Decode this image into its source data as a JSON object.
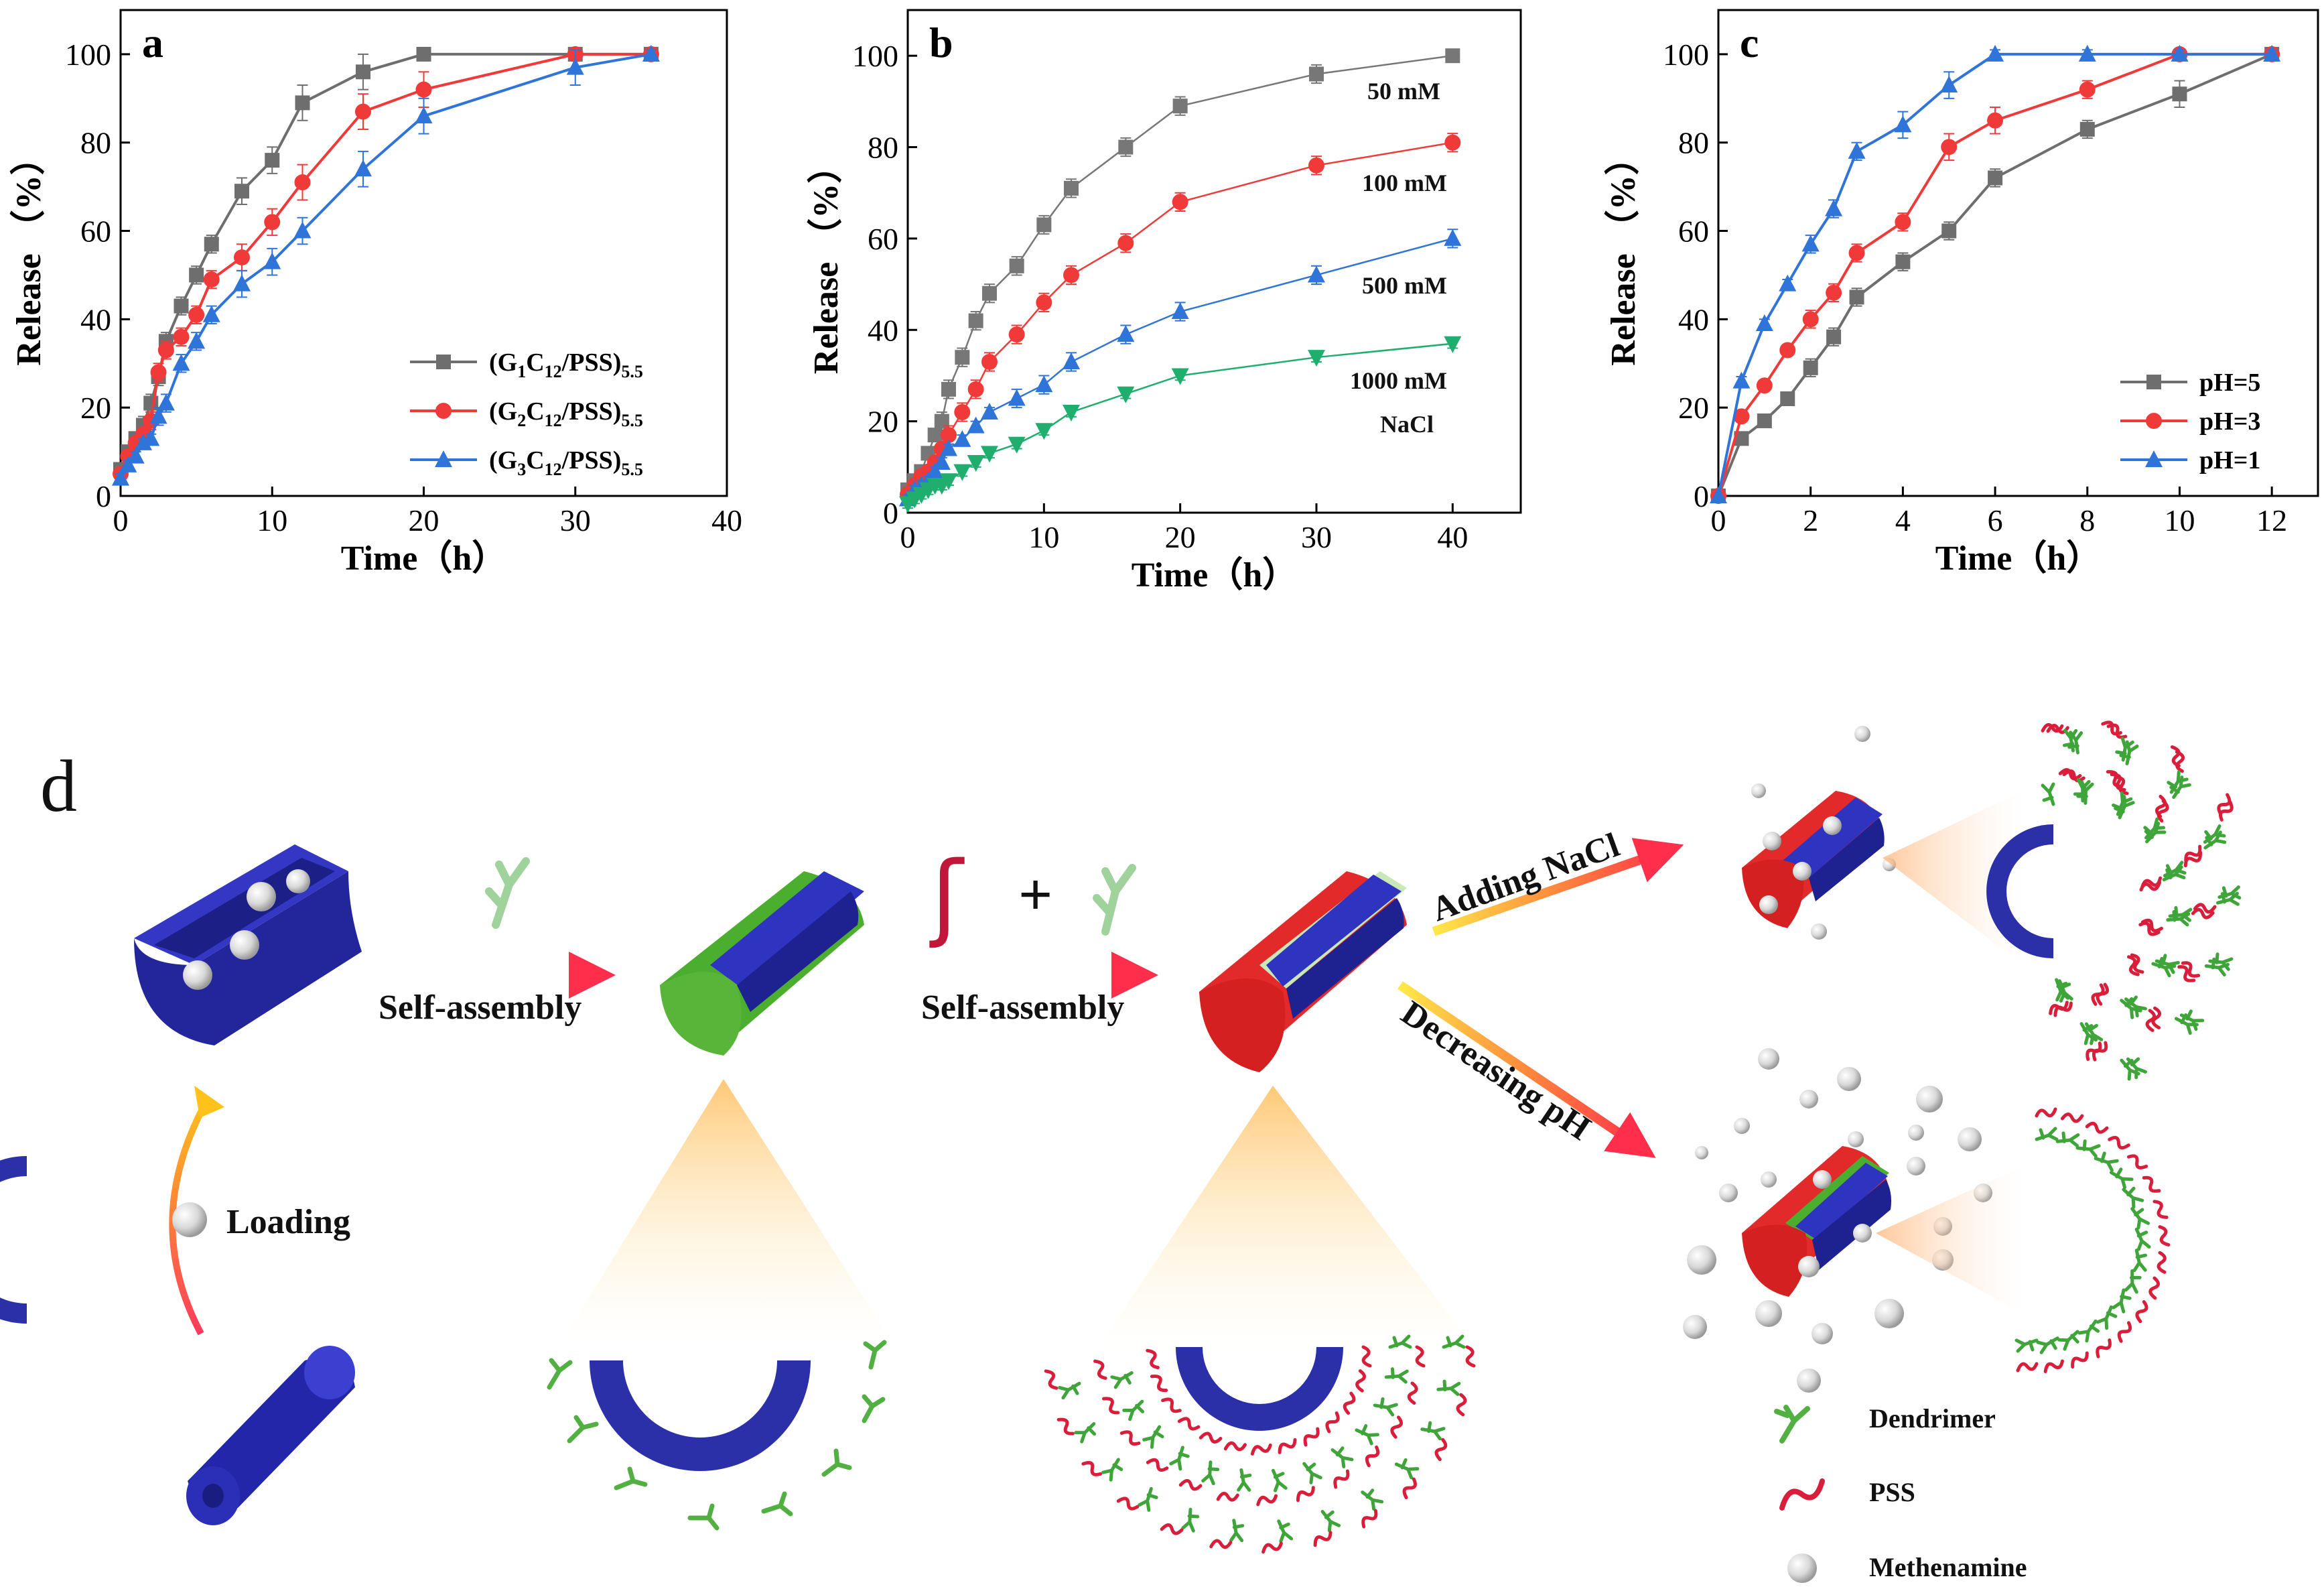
{
  "chart_data": [
    {
      "type": "line",
      "panel_letter": "a",
      "xlabel": "Time（h）",
      "ylabel": "Release （%）",
      "xlim": [
        0,
        40
      ],
      "ylim": [
        0,
        110
      ],
      "xticks": [
        "0",
        "10",
        "20",
        "30",
        "40"
      ],
      "yticks": [
        "0",
        "20",
        "40",
        "60",
        "80",
        "100"
      ],
      "legend_position": "lower-right",
      "series": [
        {
          "name": "(G1C12/PSS)5.5",
          "name_parts": [
            "(G",
            "1",
            "C",
            "12",
            "/PSS)",
            "5.5"
          ],
          "color": "#6e6e6e",
          "marker": "square",
          "x": [
            0,
            0.5,
            1,
            1.5,
            2,
            2.5,
            3,
            4,
            5,
            6,
            8,
            10,
            12,
            16,
            20,
            30,
            35
          ],
          "y": [
            6,
            10,
            13,
            16,
            21,
            27,
            35,
            43,
            50,
            57,
            69,
            76,
            89,
            96,
            100,
            100,
            100
          ],
          "err": [
            1,
            1,
            1,
            2,
            2,
            2,
            2,
            2,
            2,
            2,
            3,
            3,
            4,
            4,
            1,
            1,
            1
          ]
        },
        {
          "name": "(G2C12/PSS)5.5",
          "name_parts": [
            "(G",
            "2",
            "C",
            "12",
            "/PSS)",
            "5.5"
          ],
          "color": "#f03a3a",
          "marker": "circle",
          "x": [
            0,
            0.5,
            1,
            1.5,
            2,
            2.5,
            3,
            4,
            5,
            6,
            8,
            10,
            12,
            16,
            20,
            30,
            35
          ],
          "y": [
            5,
            9,
            12,
            14,
            17,
            28,
            33,
            36,
            41,
            49,
            54,
            62,
            71,
            87,
            92,
            100,
            100
          ],
          "err": [
            1,
            1,
            1,
            1,
            2,
            2,
            2,
            2,
            2,
            2,
            3,
            3,
            4,
            4,
            4,
            1,
            1
          ]
        },
        {
          "name": "(G3C12/PSS)5.5",
          "name_parts": [
            "(G",
            "3",
            "C",
            "12",
            "/PSS)",
            "5.5"
          ],
          "color": "#2f74d8",
          "marker": "triangle",
          "x": [
            0,
            0.5,
            1,
            1.5,
            2,
            2.5,
            3,
            4,
            5,
            6,
            8,
            10,
            12,
            16,
            20,
            30,
            35
          ],
          "y": [
            4,
            7,
            9,
            12,
            13,
            18,
            21,
            30,
            35,
            41,
            48,
            53,
            60,
            74,
            86,
            97,
            100
          ],
          "err": [
            1,
            1,
            1,
            1,
            1,
            2,
            2,
            2,
            2,
            2,
            3,
            3,
            3,
            4,
            4,
            4,
            1
          ]
        }
      ]
    },
    {
      "type": "line",
      "panel_letter": "b",
      "xlabel": "Time（h）",
      "ylabel": "Release （%）",
      "xlim": [
        0,
        45
      ],
      "ylim": [
        0,
        110
      ],
      "xticks": [
        "0",
        "10",
        "20",
        "30",
        "40"
      ],
      "yticks": [
        "0",
        "20",
        "40",
        "60",
        "80",
        "100"
      ],
      "annotations": [
        "50 mM",
        "100 mM",
        "500 mM",
        "1000 mM",
        "NaCl"
      ],
      "series": [
        {
          "color": "#777777",
          "marker": "square",
          "x": [
            0,
            0.5,
            1,
            1.5,
            2,
            2.5,
            3,
            4,
            5,
            6,
            8,
            10,
            12,
            16,
            20,
            30,
            40
          ],
          "y": [
            5,
            7,
            9,
            13,
            17,
            20,
            27,
            34,
            42,
            48,
            54,
            63,
            71,
            80,
            89,
            96,
            100
          ],
          "err": [
            1,
            1,
            1,
            1,
            1,
            2,
            2,
            2,
            2,
            2,
            2,
            2,
            2,
            2,
            2,
            2,
            1
          ]
        },
        {
          "color": "#f03a3a",
          "marker": "circle",
          "x": [
            0,
            0.5,
            1,
            1.5,
            2,
            2.5,
            3,
            4,
            5,
            6,
            8,
            10,
            12,
            16,
            20,
            30,
            40
          ],
          "y": [
            4,
            6,
            8,
            9,
            11,
            14,
            17,
            22,
            27,
            33,
            39,
            46,
            52,
            59,
            68,
            76,
            81
          ],
          "err": [
            1,
            1,
            1,
            1,
            1,
            1,
            2,
            2,
            2,
            2,
            2,
            2,
            2,
            2,
            2,
            2,
            2
          ]
        },
        {
          "color": "#2f74d8",
          "marker": "triangle",
          "x": [
            0,
            0.5,
            1,
            1.5,
            2,
            2.5,
            3,
            4,
            5,
            6,
            8,
            10,
            12,
            16,
            20,
            30,
            40
          ],
          "y": [
            3,
            5,
            6,
            7,
            9,
            11,
            14,
            16,
            19,
            22,
            25,
            28,
            33,
            39,
            44,
            52,
            60
          ],
          "err": [
            1,
            1,
            1,
            1,
            1,
            1,
            1,
            1,
            1,
            1,
            2,
            2,
            2,
            2,
            2,
            2,
            2
          ]
        },
        {
          "color": "#1fae6e",
          "marker": "down-triangle",
          "x": [
            0,
            0.5,
            1,
            1.5,
            2,
            2.5,
            3,
            4,
            5,
            6,
            8,
            10,
            12,
            16,
            20,
            30,
            40
          ],
          "y": [
            2,
            3,
            4,
            5,
            6,
            6,
            7,
            9,
            11,
            13,
            15,
            18,
            22,
            26,
            30,
            34,
            37
          ],
          "err": [
            1,
            1,
            1,
            1,
            1,
            1,
            1,
            1,
            1,
            1,
            1,
            1,
            1,
            1,
            1,
            1,
            1
          ]
        }
      ]
    },
    {
      "type": "line",
      "panel_letter": "c",
      "xlabel": "Time（h）",
      "ylabel": "Release （%）",
      "xlim": [
        0,
        13
      ],
      "ylim": [
        0,
        110
      ],
      "xticks": [
        "0",
        "2",
        "4",
        "6",
        "8",
        "10",
        "12"
      ],
      "yticks": [
        "0",
        "20",
        "40",
        "60",
        "80",
        "100"
      ],
      "legend_position": "lower-right",
      "series": [
        {
          "name": "pH=5",
          "color": "#6e6e6e",
          "marker": "square",
          "x": [
            0,
            0.5,
            1,
            1.5,
            2,
            2.5,
            3,
            4,
            5,
            6,
            8,
            10,
            12
          ],
          "y": [
            0,
            13,
            17,
            22,
            29,
            36,
            45,
            53,
            60,
            72,
            83,
            91,
            100
          ],
          "err": [
            0,
            1,
            1,
            1,
            2,
            2,
            2,
            2,
            2,
            2,
            2,
            3,
            1
          ]
        },
        {
          "name": "pH=3",
          "color": "#f03a3a",
          "marker": "circle",
          "x": [
            0,
            0.5,
            1,
            1.5,
            2,
            2.5,
            3,
            4,
            5,
            6,
            8,
            10,
            12
          ],
          "y": [
            0,
            18,
            25,
            33,
            40,
            46,
            55,
            62,
            79,
            85,
            92,
            100,
            100
          ],
          "err": [
            0,
            1,
            1,
            1,
            2,
            2,
            2,
            2,
            3,
            3,
            2,
            1,
            1
          ]
        },
        {
          "name": "pH=1",
          "color": "#2f74d8",
          "marker": "triangle",
          "x": [
            0,
            0.5,
            1,
            1.5,
            2,
            2.5,
            3,
            4,
            5,
            6,
            8,
            10,
            12
          ],
          "y": [
            0,
            26,
            39,
            48,
            57,
            65,
            78,
            84,
            93,
            100,
            100,
            100,
            100
          ],
          "err": [
            0,
            1,
            1,
            1,
            2,
            2,
            2,
            3,
            3,
            1,
            1,
            1,
            1
          ]
        }
      ]
    }
  ],
  "diagram": {
    "panel_letter": "d",
    "arrow_labels": {
      "self_assembly_1": "Self-assembly",
      "self_assembly_2": "Self-assembly",
      "plus": "+",
      "adding_nacl": "Adding NaCl",
      "decreasing_ph": "Decreasing pH",
      "loading": "Loading"
    },
    "legend": {
      "dendrimer": "Dendrimer",
      "pss": "PSS",
      "methenamine": "Methenamine"
    },
    "colors": {
      "tube": "#2a2fb0",
      "dendrimer": "#3fa53a",
      "pss": "#d81e3a",
      "particle": "#cfcfcf",
      "arrow": "#ff3b4a"
    }
  }
}
